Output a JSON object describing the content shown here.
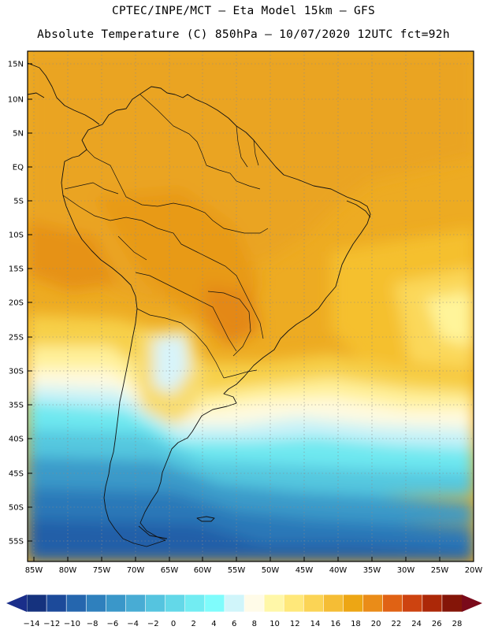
{
  "title": {
    "line1": "CPTEC/INPE/MCT –  Eta Model 15km – GFS",
    "line2": "Absolute Temperature (C) 850hPa – 10/07/2020 12UTC fct=92h"
  },
  "map": {
    "lat_labels": [
      "15N",
      "10N",
      "5N",
      "EQ",
      "5S",
      "10S",
      "15S",
      "20S",
      "25S",
      "30S",
      "35S",
      "40S",
      "45S",
      "50S",
      "55S"
    ],
    "lon_labels": [
      "85W",
      "80W",
      "75W",
      "70W",
      "65W",
      "60W",
      "55W",
      "50W",
      "45W",
      "40W",
      "35W",
      "30W",
      "25W",
      "20W"
    ],
    "lat_range": [
      "15N",
      "57S"
    ],
    "lon_range": [
      "86W",
      "20W"
    ]
  },
  "colorbar": {
    "labels": [
      "-14",
      "-12",
      "-10",
      "-8",
      "-6",
      "-4",
      "-2",
      "0",
      "2",
      "4",
      "6",
      "8",
      "10",
      "12",
      "14",
      "16",
      "18",
      "20",
      "22",
      "24",
      "26",
      "28"
    ],
    "colors": [
      "#15327e",
      "#1c4a9a",
      "#2566ae",
      "#2f80bd",
      "#3a97c9",
      "#48acd4",
      "#55c4df",
      "#63d8e8",
      "#72ecf2",
      "#7ffcfc",
      "#d0f5fa",
      "#fffbe8",
      "#fff7a8",
      "#ffe87a",
      "#fbd455",
      "#f5bd35",
      "#eda614",
      "#ea8c18",
      "#e06214",
      "#cd4310",
      "#ac2808",
      "#841508"
    ],
    "low_arrow_color": "#1a2e8a",
    "high_arrow_color": "#7a0a1a"
  }
}
